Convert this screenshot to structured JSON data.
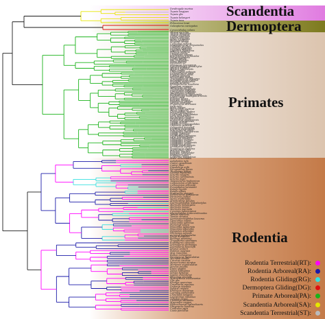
{
  "clade_labels": {
    "scandentia": "Scandentia",
    "dermoptera": "Dermoptera",
    "primates": "Primates",
    "rodentia": "Rodentia"
  },
  "band_colors": {
    "scandentia": "#e9a6e9",
    "dermoptera": "#8f8a2a",
    "primates": "#e6d6c8",
    "rodentia": "#cf8c5c"
  },
  "legend": [
    {
      "label": "Rodentia Terrestrial(RT):",
      "color": "#ff00ff"
    },
    {
      "label": "Rodentia Arboreal(RA):",
      "color": "#1a1aa8"
    },
    {
      "label": "Rodentia Gliding(RG):",
      "color": "#33e0e0"
    },
    {
      "label": "Dermoptera Gliding(DG):",
      "color": "#e01010"
    },
    {
      "label": "Primate Arboreal(PA):",
      "color": "#19b319"
    },
    {
      "label": "Scandentia Arboreal(SA):",
      "color": "#e6e600"
    },
    {
      "label": "Scandentia Terrestrial(ST):",
      "color": "#bbbbbb"
    }
  ],
  "taxa": {
    "scandentia": [
      "Dendrogale murina",
      "Tupaia longipes",
      "Tupaia glis",
      "Tupaia belangeri",
      "Tupaia tana",
      "Ptilocercus lowii"
    ],
    "dermoptera": [
      "Galeopterus variegatus",
      "Cynocephalus volans"
    ],
    "primates": [
      "Tarsius syrichta",
      "Tarsius bancanus",
      "Tarsius dentatus",
      "Cebus capucinus",
      "Saimiri sciureus",
      "Aotus trivirgatus",
      "Ateles geoffroyi",
      "Alouatta caraya",
      "Callicebus moloch",
      "Leontopithecus chrysomelas",
      "Callithrix jacchus",
      "Cebuella pygmaea",
      "Saguinus oedipus",
      "Lagothrix lagotricha",
      "Pithecia pithecia",
      "Cacajao calvus",
      "Chiropotes satanas",
      "Brachyteles arachnoides",
      "Pongo pygmaeus",
      "Gorilla gorilla",
      "Pan troglodytes",
      "Homo sapiens",
      "Hylobates lar",
      "Nomascus leucogenys",
      "Symphalangus syndactylus",
      "Macaca mulatta",
      "Macaca fascicularis",
      "Papio anubis",
      "Chlorocebus aethiops",
      "Cercopithecus mitis",
      "Erythrocebus patas",
      "Colobus guereza",
      "Piliocolobus badius",
      "Trachypithecus obscurus",
      "Semnopithecus entellus",
      "Presbytis melalophos",
      "Nasalis larvatus",
      "Rhinopithecus roxellana",
      "Pygathrix nemaeus",
      "Mandrillus sphinx",
      "Theropithecus gelada",
      "Lophocebus albigena",
      "Cercocebus torquatus",
      "Miopithecus talapoin",
      "Allenopithecus nigroviridis",
      "Daubentonia madagascariensis",
      "Lemur catta",
      "Eulemur fulvus",
      "Eulemur mongoz",
      "Hapalemur griseus",
      "Varecia variegata",
      "Propithecus verreauxi",
      "Indri indri",
      "Avahi laniger",
      "Microcebus murinus",
      "Mirza coquereli",
      "Cheirogaleus medius",
      "Phaner pallescens",
      "Lepilemur ruficaudatus",
      "Loris tardigradus",
      "Nycticebus coucang",
      "Perodicticus potto",
      "Arctocebus calabarensis",
      "Galago senegalensis",
      "Galago moholi",
      "Otolemur crassicaudatus",
      "Otolemur garnettii",
      "Galagoides demidoff",
      "Euoticus elegantulus",
      "Sciurocheirus alleni",
      "Galagoides zanzibaricus",
      "Galago matschiei",
      "Galago gallarum",
      "Nycticebus pygmaeus",
      "Loris lydekkerianus",
      "Otolemur monteiri",
      "Galagoides thomasi",
      "Galagoides orinus",
      "Galagoides rondoensis",
      "Galagoides granti",
      "Galago cameronensis",
      "Arctocebus aureus",
      "Propithecus diadema",
      "Microcebus rufus",
      "Eulemur macaco",
      "Eulemur rubriventer",
      "Hapalemur simus",
      "Prolemur simus",
      "Lepilemur mustelinus",
      "Avahi occidentalis"
    ],
    "rodentia": [
      "Aplodontia rufa",
      "Castor canadensis",
      "Castor fiber",
      "Dipodomys ordii",
      "Perognathus flavus",
      "Thomomys bottae",
      "Geomys bursarius",
      "Sciurus vulgaris",
      "Sciurus carolinensis",
      "Sciurus niger",
      "Tamiasciurus hudsonicus",
      "Callosciurus erythraeus",
      "Callosciurus prevostii",
      "Funambulus pennantii",
      "Ratufa bicolor",
      "Ratufa affinis",
      "Protoxerus stangeri",
      "Heliosciurus gambianus",
      "Paraxerus cepapi",
      "Xerus erythropus",
      "Atlantoxerus getulus",
      "Spermophilopsis leptodactylus",
      "Marmota himalayana",
      "Marmota monax",
      "Marmota marmota",
      "Cynomys ludovicianus",
      "Spermophilus tridecemlineatus",
      "Tamias sibiricus",
      "Tamias striatus",
      "Ammospermophilus leucurus",
      "Glaucomys volans",
      "Glaucomys sabrinus",
      "Pteromys volans",
      "Petaurista petaurista",
      "Petaurista alborufus",
      "Hylopetes alboniger",
      "Petinomys setosus",
      "Aeromys tephromelas",
      "Iomys horsfieldii",
      "Belomys pearsonii",
      "Trogopterus xanthipes",
      "Eupetaurus cinereus",
      "Anomalurus derbianus",
      "Anomalurus beecrofti",
      "Idiurus zenkeri",
      "Pedetes capensis",
      "Mus musculus",
      "Rattus norvegicus",
      "Peromyscus maniculatus",
      "Microtus arvalis",
      "Cricetus cricetus",
      "Mesocricetus auratus",
      "Meriones unguiculatus",
      "Jaculus jaculus",
      "Dipus sagitta",
      "Zapus hudsonius",
      "Sicista betulina",
      "Spalax ehrenbergi",
      "Rhizomys sinensis",
      "Muscardinus avellanarius",
      "Glis glis",
      "Eliomys quercinus",
      "Graphiurus murinus",
      "Dryomys nitedula",
      "Hystrix cristata",
      "Erethizon dorsatum",
      "Coendou prehensilis",
      "Chinchilla lanigera",
      "Lagostomus maximus",
      "Octodon degus",
      "Ctenomys sociabilis",
      "Myocastor coypus",
      "Hydrochoerus hydrochaeris",
      "Dasyprocta leporina",
      "Cuniculus paca",
      "Cavia porcellus"
    ]
  }
}
